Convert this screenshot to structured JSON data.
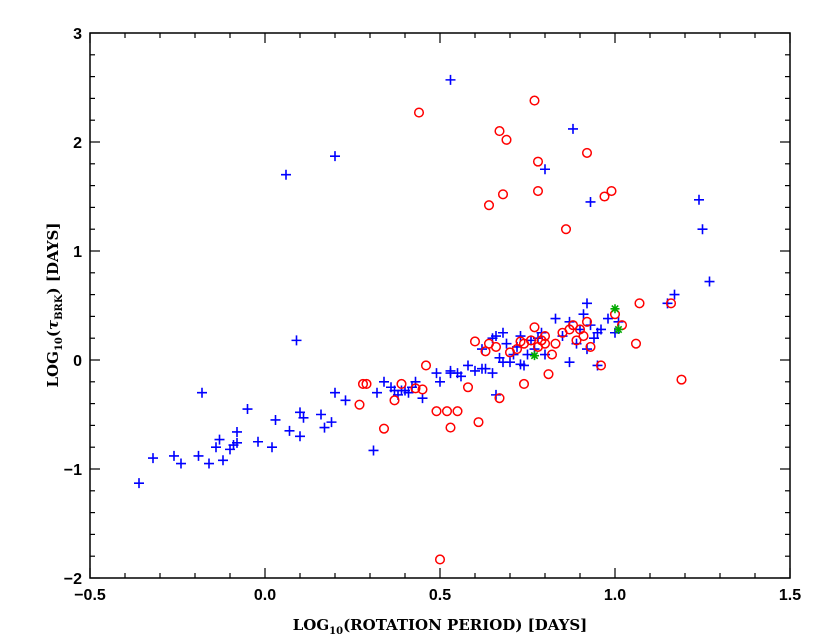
{
  "chart_data": {
    "type": "scatter",
    "title": "",
    "xlabel": {
      "prefix": "LOG",
      "sub": "10",
      "text": "(ROTATION PERIOD) [DAYS]"
    },
    "ylabel": {
      "prefix": "LOG",
      "sub": "10",
      "open": "(",
      "greek": "τ",
      "greek_sub": "BRK",
      "text": ") [DAYS]"
    },
    "xlim": [
      -0.5,
      1.5
    ],
    "ylim": [
      -2,
      3
    ],
    "x_ticks": [
      -0.5,
      0.0,
      0.5,
      1.0,
      1.5
    ],
    "x_tick_labels": [
      "−0.5",
      "0.0",
      "0.5",
      "1.0",
      "1.5"
    ],
    "y_ticks": [
      -2,
      -1,
      0,
      1,
      2,
      3
    ],
    "y_tick_labels": [
      "−2",
      "−1",
      "0",
      "1",
      "2",
      "3"
    ],
    "grid": false,
    "series": [
      {
        "marker": "plus",
        "color": "#0000ff",
        "points": [
          [
            -0.36,
            -1.13
          ],
          [
            -0.32,
            -0.9
          ],
          [
            -0.26,
            -0.88
          ],
          [
            -0.24,
            -0.95
          ],
          [
            -0.19,
            -0.88
          ],
          [
            -0.18,
            -0.3
          ],
          [
            -0.16,
            -0.95
          ],
          [
            -0.14,
            -0.8
          ],
          [
            -0.13,
            -0.73
          ],
          [
            -0.12,
            -0.92
          ],
          [
            -0.1,
            -0.82
          ],
          [
            -0.09,
            -0.78
          ],
          [
            -0.08,
            -0.66
          ],
          [
            -0.08,
            -0.76
          ],
          [
            -0.05,
            -0.45
          ],
          [
            -0.02,
            -0.75
          ],
          [
            0.02,
            -0.8
          ],
          [
            0.03,
            -0.55
          ],
          [
            0.06,
            1.7
          ],
          [
            0.07,
            -0.65
          ],
          [
            0.09,
            0.18
          ],
          [
            0.1,
            -0.48
          ],
          [
            0.1,
            -0.7
          ],
          [
            0.11,
            -0.53
          ],
          [
            0.16,
            -0.5
          ],
          [
            0.17,
            -0.62
          ],
          [
            0.19,
            -0.57
          ],
          [
            0.2,
            -0.3
          ],
          [
            0.2,
            1.87
          ],
          [
            0.23,
            -0.37
          ],
          [
            0.31,
            -0.83
          ],
          [
            0.32,
            -0.3
          ],
          [
            0.34,
            -0.2
          ],
          [
            0.36,
            -0.25
          ],
          [
            0.37,
            -0.28
          ],
          [
            0.38,
            -0.32
          ],
          [
            0.39,
            -0.28
          ],
          [
            0.4,
            -0.28
          ],
          [
            0.41,
            -0.3
          ],
          [
            0.42,
            -0.25
          ],
          [
            0.43,
            -0.2
          ],
          [
            0.45,
            -0.35
          ],
          [
            0.49,
            -0.12
          ],
          [
            0.5,
            -0.2
          ],
          [
            0.53,
            -0.12
          ],
          [
            0.53,
            -0.1
          ],
          [
            0.53,
            2.57
          ],
          [
            0.56,
            -0.15
          ],
          [
            0.58,
            -0.05
          ],
          [
            0.6,
            -0.1
          ],
          [
            0.62,
            -0.08
          ],
          [
            0.63,
            -0.08
          ],
          [
            0.65,
            -0.12
          ],
          [
            0.65,
            0.2
          ],
          [
            0.66,
            0.22
          ],
          [
            0.66,
            -0.32
          ],
          [
            0.67,
            0.02
          ],
          [
            0.68,
            0.25
          ],
          [
            0.69,
            0.15
          ],
          [
            0.7,
            -0.02
          ],
          [
            0.71,
            0.05
          ],
          [
            0.72,
            0.12
          ],
          [
            0.73,
            0.22
          ],
          [
            0.74,
            -0.05
          ],
          [
            0.75,
            0.05
          ],
          [
            0.76,
            0.18
          ],
          [
            0.77,
            0.1
          ],
          [
            0.78,
            0.2
          ],
          [
            0.79,
            0.25
          ],
          [
            0.8,
            0.05
          ],
          [
            0.8,
            1.75
          ],
          [
            0.83,
            0.38
          ],
          [
            0.85,
            0.22
          ],
          [
            0.87,
            -0.02
          ],
          [
            0.87,
            0.35
          ],
          [
            0.88,
            2.12
          ],
          [
            0.89,
            0.15
          ],
          [
            0.9,
            0.28
          ],
          [
            0.91,
            0.42
          ],
          [
            0.92,
            0.52
          ],
          [
            0.93,
            0.32
          ],
          [
            0.93,
            1.45
          ],
          [
            0.94,
            0.2
          ],
          [
            0.95,
            0.25
          ],
          [
            0.96,
            0.28
          ],
          [
            0.98,
            0.38
          ],
          [
            1.0,
            0.25
          ],
          [
            1.01,
            0.35
          ],
          [
            1.15,
            0.52
          ],
          [
            1.17,
            0.6
          ],
          [
            1.24,
            1.47
          ],
          [
            1.25,
            1.2
          ],
          [
            1.27,
            0.72
          ],
          [
            0.92,
            0.1
          ],
          [
            0.95,
            -0.05
          ],
          [
            0.73,
            -0.04
          ],
          [
            0.68,
            -0.02
          ],
          [
            0.55,
            -0.12
          ],
          [
            0.62,
            0.1
          ]
        ]
      },
      {
        "marker": "circle",
        "color": "#ff0000",
        "points": [
          [
            0.27,
            -0.41
          ],
          [
            0.28,
            -0.22
          ],
          [
            0.29,
            -0.22
          ],
          [
            0.34,
            -0.63
          ],
          [
            0.37,
            -0.37
          ],
          [
            0.39,
            -0.22
          ],
          [
            0.43,
            -0.26
          ],
          [
            0.44,
            2.27
          ],
          [
            0.45,
            -0.27
          ],
          [
            0.46,
            -0.05
          ],
          [
            0.49,
            -0.47
          ],
          [
            0.5,
            -1.83
          ],
          [
            0.52,
            -0.47
          ],
          [
            0.53,
            -0.62
          ],
          [
            0.55,
            -0.47
          ],
          [
            0.58,
            -0.25
          ],
          [
            0.6,
            0.17
          ],
          [
            0.61,
            -0.57
          ],
          [
            0.63,
            0.08
          ],
          [
            0.64,
            1.42
          ],
          [
            0.64,
            0.15
          ],
          [
            0.66,
            0.12
          ],
          [
            0.67,
            -0.35
          ],
          [
            0.67,
            2.1
          ],
          [
            0.68,
            1.52
          ],
          [
            0.69,
            2.02
          ],
          [
            0.7,
            0.07
          ],
          [
            0.72,
            0.1
          ],
          [
            0.73,
            0.17
          ],
          [
            0.74,
            -0.22
          ],
          [
            0.74,
            0.15
          ],
          [
            0.76,
            0.18
          ],
          [
            0.77,
            2.38
          ],
          [
            0.77,
            0.3
          ],
          [
            0.78,
            1.82
          ],
          [
            0.78,
            0.12
          ],
          [
            0.78,
            1.55
          ],
          [
            0.79,
            0.18
          ],
          [
            0.8,
            0.15
          ],
          [
            0.81,
            -0.13
          ],
          [
            0.82,
            0.05
          ],
          [
            0.83,
            0.15
          ],
          [
            0.85,
            0.25
          ],
          [
            0.86,
            1.2
          ],
          [
            0.87,
            0.28
          ],
          [
            0.89,
            0.18
          ],
          [
            0.9,
            0.28
          ],
          [
            0.91,
            0.22
          ],
          [
            0.92,
            0.35
          ],
          [
            0.92,
            1.9
          ],
          [
            0.93,
            0.12
          ],
          [
            0.96,
            -0.05
          ],
          [
            0.97,
            1.5
          ],
          [
            0.99,
            1.55
          ],
          [
            1.0,
            0.42
          ],
          [
            1.02,
            0.32
          ],
          [
            1.06,
            0.15
          ],
          [
            1.07,
            0.52
          ],
          [
            1.16,
            0.52
          ],
          [
            1.19,
            -0.18
          ],
          [
            0.8,
            0.22
          ],
          [
            0.88,
            0.32
          ]
        ]
      },
      {
        "marker": "star",
        "color": "#00aa00",
        "points": [
          [
            0.77,
            0.04
          ],
          [
            1.0,
            0.47
          ],
          [
            1.01,
            0.28
          ]
        ]
      }
    ]
  }
}
